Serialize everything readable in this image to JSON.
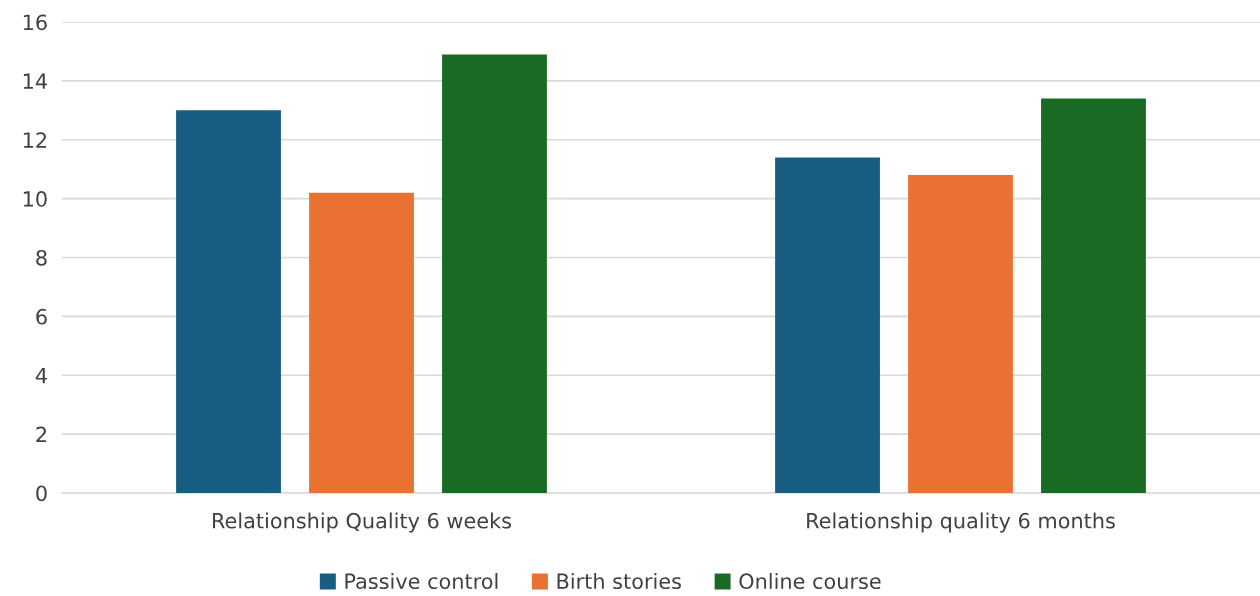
{
  "chart_data": {
    "type": "bar",
    "categories": [
      "Relationship Quality 6 weeks",
      "Relationship quality 6 months"
    ],
    "series": [
      {
        "name": "Passive control",
        "color": "#175e82",
        "values": [
          13.0,
          11.4
        ]
      },
      {
        "name": "Birth stories",
        "color": "#e97132",
        "values": [
          10.2,
          10.8
        ]
      },
      {
        "name": "Online course",
        "color": "#196b24",
        "values": [
          14.9,
          13.4
        ]
      }
    ],
    "ylim": [
      0,
      16
    ],
    "yticks": [
      0,
      2,
      4,
      6,
      8,
      10,
      12,
      14,
      16
    ],
    "grid": "y",
    "legend": "bottom"
  }
}
